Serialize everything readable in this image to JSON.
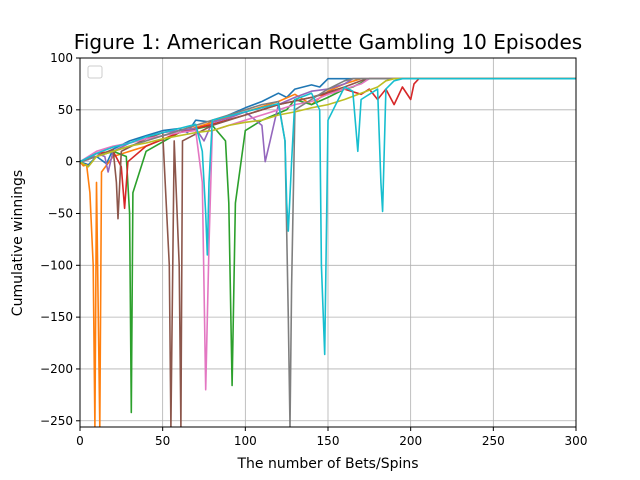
{
  "chart_data": {
    "type": "line",
    "title": "Figure 1: American Roulette Gambling 10 Episodes",
    "xlabel": "The number of Bets/Spins",
    "ylabel": "Cumulative winnings",
    "xlim": [
      0,
      300
    ],
    "ylim": [
      -256,
      100
    ],
    "xticks": [
      0,
      50,
      100,
      150,
      200,
      250,
      300
    ],
    "yticks": [
      -250,
      -200,
      -150,
      -100,
      -50,
      0,
      50,
      100
    ],
    "grid": true,
    "legend": "upper-left (empty)",
    "target_winnings": 80,
    "series": [
      {
        "color": "#1f77b4",
        "points": [
          [
            0,
            0
          ],
          [
            5,
            -3
          ],
          [
            10,
            5
          ],
          [
            16,
            -2
          ],
          [
            20,
            12
          ],
          [
            30,
            20
          ],
          [
            40,
            25
          ],
          [
            50,
            30
          ],
          [
            60,
            32
          ],
          [
            65,
            28
          ],
          [
            70,
            40
          ],
          [
            80,
            38
          ],
          [
            90,
            45
          ],
          [
            100,
            52
          ],
          [
            110,
            58
          ],
          [
            120,
            66
          ],
          [
            125,
            62
          ],
          [
            130,
            70
          ],
          [
            140,
            74
          ],
          [
            145,
            72
          ],
          [
            150,
            80
          ],
          [
            300,
            80
          ]
        ]
      },
      {
        "color": "#ff7f0e",
        "points": [
          [
            0,
            0
          ],
          [
            2,
            -4
          ],
          [
            4,
            -3
          ],
          [
            6,
            -30
          ],
          [
            8,
            -100
          ],
          [
            9,
            -256
          ],
          [
            10,
            -20
          ],
          [
            12,
            -256
          ],
          [
            13,
            -10
          ],
          [
            20,
            5
          ],
          [
            40,
            15
          ],
          [
            60,
            28
          ],
          [
            80,
            38
          ],
          [
            100,
            48
          ],
          [
            120,
            58
          ],
          [
            130,
            65
          ],
          [
            140,
            55
          ],
          [
            150,
            68
          ],
          [
            160,
            75
          ],
          [
            170,
            80
          ],
          [
            300,
            80
          ]
        ]
      },
      {
        "color": "#2ca02c",
        "points": [
          [
            0,
            0
          ],
          [
            10,
            5
          ],
          [
            20,
            10
          ],
          [
            28,
            5
          ],
          [
            30,
            -50
          ],
          [
            31,
            -242
          ],
          [
            32,
            -30
          ],
          [
            40,
            10
          ],
          [
            60,
            28
          ],
          [
            80,
            35
          ],
          [
            88,
            20
          ],
          [
            90,
            -40
          ],
          [
            92,
            -216
          ],
          [
            94,
            -40
          ],
          [
            100,
            30
          ],
          [
            110,
            40
          ],
          [
            125,
            50
          ],
          [
            130,
            60
          ],
          [
            140,
            55
          ],
          [
            150,
            62
          ],
          [
            160,
            70
          ],
          [
            165,
            72
          ],
          [
            175,
            80
          ],
          [
            300,
            80
          ]
        ]
      },
      {
        "color": "#d62728",
        "points": [
          [
            0,
            0
          ],
          [
            10,
            8
          ],
          [
            20,
            10
          ],
          [
            25,
            -5
          ],
          [
            27,
            -45
          ],
          [
            29,
            0
          ],
          [
            40,
            15
          ],
          [
            60,
            28
          ],
          [
            80,
            36
          ],
          [
            100,
            45
          ],
          [
            120,
            55
          ],
          [
            140,
            62
          ],
          [
            160,
            70
          ],
          [
            170,
            65
          ],
          [
            175,
            70
          ],
          [
            180,
            60
          ],
          [
            185,
            70
          ],
          [
            190,
            55
          ],
          [
            195,
            72
          ],
          [
            200,
            60
          ],
          [
            202,
            75
          ],
          [
            205,
            80
          ],
          [
            300,
            80
          ]
        ]
      },
      {
        "color": "#9467bd",
        "points": [
          [
            0,
            0
          ],
          [
            5,
            2
          ],
          [
            10,
            8
          ],
          [
            15,
            5
          ],
          [
            17,
            -10
          ],
          [
            20,
            10
          ],
          [
            30,
            18
          ],
          [
            40,
            22
          ],
          [
            50,
            28
          ],
          [
            60,
            30
          ],
          [
            70,
            32
          ],
          [
            75,
            20
          ],
          [
            80,
            38
          ],
          [
            90,
            42
          ],
          [
            100,
            48
          ],
          [
            110,
            35
          ],
          [
            112,
            0
          ],
          [
            115,
            20
          ],
          [
            120,
            55
          ],
          [
            130,
            62
          ],
          [
            140,
            68
          ],
          [
            150,
            70
          ],
          [
            160,
            75
          ],
          [
            165,
            80
          ],
          [
            300,
            80
          ]
        ]
      },
      {
        "color": "#8c564b",
        "points": [
          [
            0,
            0
          ],
          [
            10,
            5
          ],
          [
            20,
            12
          ],
          [
            22,
            -20
          ],
          [
            23,
            -55
          ],
          [
            25,
            10
          ],
          [
            40,
            22
          ],
          [
            50,
            28
          ],
          [
            54,
            -100
          ],
          [
            55,
            -256
          ],
          [
            57,
            20
          ],
          [
            60,
            -100
          ],
          [
            61,
            -256
          ],
          [
            62,
            20
          ],
          [
            80,
            35
          ],
          [
            100,
            45
          ],
          [
            120,
            55
          ],
          [
            140,
            62
          ],
          [
            160,
            72
          ],
          [
            170,
            78
          ],
          [
            175,
            80
          ],
          [
            300,
            80
          ]
        ]
      },
      {
        "color": "#e377c2",
        "points": [
          [
            0,
            0
          ],
          [
            10,
            10
          ],
          [
            20,
            15
          ],
          [
            30,
            18
          ],
          [
            40,
            22
          ],
          [
            50,
            25
          ],
          [
            60,
            28
          ],
          [
            70,
            30
          ],
          [
            74,
            -20
          ],
          [
            76,
            -220
          ],
          [
            78,
            -80
          ],
          [
            80,
            30
          ],
          [
            90,
            35
          ],
          [
            100,
            40
          ],
          [
            110,
            45
          ],
          [
            120,
            50
          ],
          [
            130,
            55
          ],
          [
            140,
            58
          ],
          [
            150,
            65
          ],
          [
            160,
            70
          ],
          [
            170,
            75
          ],
          [
            175,
            80
          ],
          [
            300,
            80
          ]
        ]
      },
      {
        "color": "#7f7f7f",
        "points": [
          [
            0,
            0
          ],
          [
            10,
            5
          ],
          [
            20,
            10
          ],
          [
            30,
            15
          ],
          [
            40,
            20
          ],
          [
            50,
            25
          ],
          [
            60,
            30
          ],
          [
            70,
            35
          ],
          [
            80,
            40
          ],
          [
            90,
            45
          ],
          [
            100,
            50
          ],
          [
            110,
            55
          ],
          [
            120,
            58
          ],
          [
            124,
            20
          ],
          [
            126,
            -150
          ],
          [
            127,
            -256
          ],
          [
            128,
            -120
          ],
          [
            130,
            50
          ],
          [
            140,
            60
          ],
          [
            150,
            70
          ],
          [
            160,
            78
          ],
          [
            165,
            80
          ],
          [
            300,
            80
          ]
        ]
      },
      {
        "color": "#bcbd22",
        "points": [
          [
            0,
            0
          ],
          [
            5,
            -5
          ],
          [
            10,
            5
          ],
          [
            20,
            10
          ],
          [
            30,
            15
          ],
          [
            40,
            18
          ],
          [
            50,
            22
          ],
          [
            60,
            25
          ],
          [
            70,
            28
          ],
          [
            80,
            30
          ],
          [
            90,
            35
          ],
          [
            100,
            38
          ],
          [
            110,
            40
          ],
          [
            120,
            45
          ],
          [
            130,
            48
          ],
          [
            140,
            52
          ],
          [
            150,
            55
          ],
          [
            160,
            60
          ],
          [
            170,
            66
          ],
          [
            180,
            72
          ],
          [
            185,
            78
          ],
          [
            190,
            80
          ],
          [
            300,
            80
          ]
        ]
      },
      {
        "color": "#17becf",
        "points": [
          [
            0,
            0
          ],
          [
            5,
            4
          ],
          [
            10,
            8
          ],
          [
            20,
            14
          ],
          [
            30,
            18
          ],
          [
            40,
            24
          ],
          [
            50,
            28
          ],
          [
            60,
            32
          ],
          [
            70,
            36
          ],
          [
            74,
            10
          ],
          [
            76,
            -50
          ],
          [
            77,
            -90
          ],
          [
            78,
            -20
          ],
          [
            80,
            40
          ],
          [
            100,
            48
          ],
          [
            120,
            56
          ],
          [
            124,
            20
          ],
          [
            125,
            -40
          ],
          [
            126,
            -67
          ],
          [
            128,
            0
          ],
          [
            130,
            60
          ],
          [
            140,
            66
          ],
          [
            145,
            50
          ],
          [
            146,
            -100
          ],
          [
            148,
            -186
          ],
          [
            150,
            40
          ],
          [
            160,
            72
          ],
          [
            165,
            68
          ],
          [
            167,
            30
          ],
          [
            168,
            10
          ],
          [
            170,
            60
          ],
          [
            180,
            70
          ],
          [
            182,
            -20
          ],
          [
            183,
            -48
          ],
          [
            185,
            70
          ],
          [
            190,
            78
          ],
          [
            195,
            80
          ],
          [
            300,
            80
          ]
        ]
      }
    ]
  }
}
